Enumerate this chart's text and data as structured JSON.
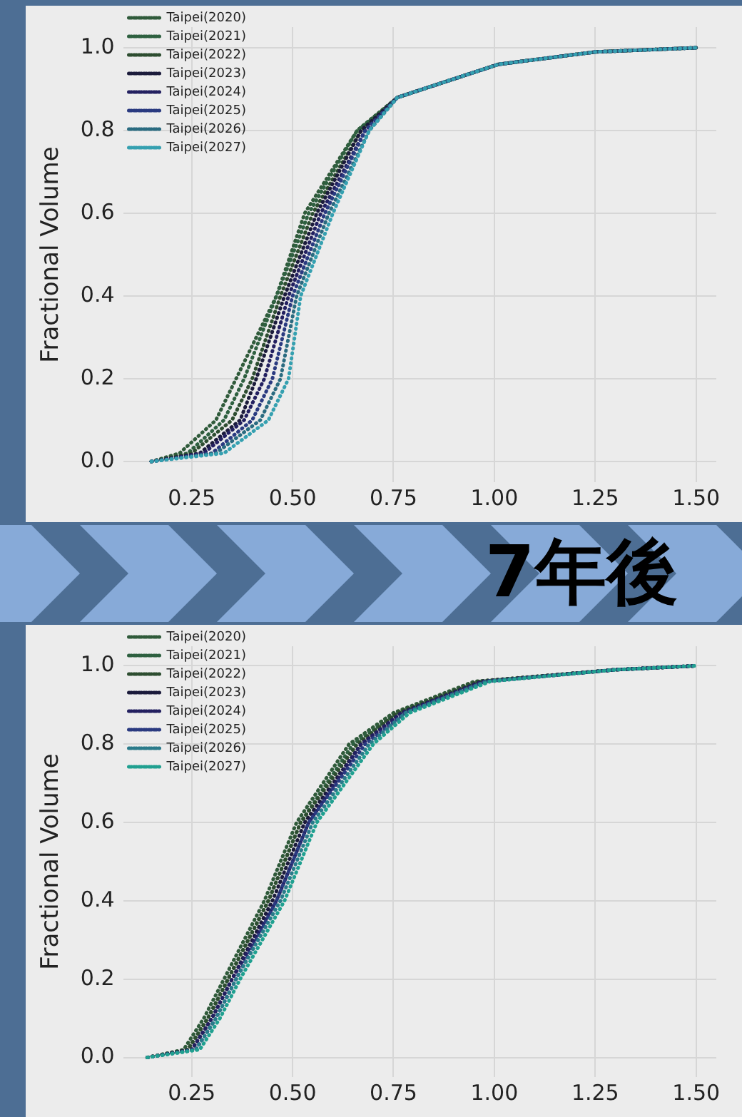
{
  "chart_data": [
    {
      "type": "line",
      "ylabel": "Fractional Volume",
      "line_style": "dotted",
      "grid": true,
      "legend": "top left",
      "xlim": [
        0.08,
        1.55
      ],
      "xticks": [
        {
          "value": 0.25,
          "label": "0.25"
        },
        {
          "value": 0.5,
          "label": "0.50"
        },
        {
          "value": 0.75,
          "label": "0.75"
        },
        {
          "value": 1,
          "label": "1.00"
        },
        {
          "value": 1.25,
          "label": "1.25"
        },
        {
          "value": 1.5,
          "label": "1.50"
        }
      ],
      "ylim": [
        -0.05,
        1.05
      ],
      "yticks": [
        {
          "value": 0,
          "label": "0.0"
        },
        {
          "value": 0.2,
          "label": "0.2"
        },
        {
          "value": 0.4,
          "label": "0.4"
        },
        {
          "value": 0.6,
          "label": "0.6"
        },
        {
          "value": 0.8,
          "label": "0.8"
        },
        {
          "value": 1,
          "label": "1.0"
        }
      ],
      "series": [
        {
          "name": "Taipei(2020)",
          "color": "#2f5a3a",
          "x": [
            0.15,
            0.22,
            0.31,
            0.36,
            0.46,
            0.53,
            0.66,
            0.76,
            1.01,
            1.25,
            1.5
          ],
          "values": [
            0,
            0.02,
            0.1,
            0.2,
            0.4,
            0.6,
            0.8,
            0.88,
            0.96,
            0.99,
            1.0
          ]
        },
        {
          "name": "Taipei(2021)",
          "color": "#2e6040",
          "x": [
            0.15,
            0.24,
            0.33,
            0.38,
            0.46,
            0.54,
            0.66,
            0.76,
            1.01,
            1.25,
            1.5
          ],
          "values": [
            0,
            0.02,
            0.1,
            0.2,
            0.4,
            0.6,
            0.8,
            0.88,
            0.96,
            0.99,
            1.0
          ]
        },
        {
          "name": "Taipei(2022)",
          "color": "#2d4d30",
          "x": [
            0.15,
            0.25,
            0.35,
            0.4,
            0.47,
            0.55,
            0.67,
            0.76,
            1.01,
            1.25,
            1.5
          ],
          "values": [
            0,
            0.02,
            0.1,
            0.2,
            0.4,
            0.6,
            0.8,
            0.88,
            0.96,
            0.99,
            1.0
          ]
        },
        {
          "name": "Taipei(2023)",
          "color": "#1b1b3b",
          "x": [
            0.15,
            0.27,
            0.37,
            0.41,
            0.48,
            0.56,
            0.67,
            0.76,
            1.01,
            1.25,
            1.5
          ],
          "values": [
            0,
            0.02,
            0.1,
            0.2,
            0.4,
            0.6,
            0.8,
            0.88,
            0.96,
            0.99,
            1.0
          ]
        },
        {
          "name": "Taipei(2024)",
          "color": "#232060",
          "x": [
            0.15,
            0.28,
            0.38,
            0.43,
            0.49,
            0.57,
            0.68,
            0.76,
            1.01,
            1.25,
            1.5
          ],
          "values": [
            0,
            0.02,
            0.1,
            0.2,
            0.4,
            0.6,
            0.8,
            0.88,
            0.96,
            0.99,
            1.0
          ]
        },
        {
          "name": "Taipei(2025)",
          "color": "#2a3a80",
          "x": [
            0.15,
            0.3,
            0.4,
            0.45,
            0.5,
            0.58,
            0.68,
            0.76,
            1.01,
            1.25,
            1.5
          ],
          "values": [
            0,
            0.02,
            0.1,
            0.2,
            0.4,
            0.6,
            0.8,
            0.88,
            0.96,
            0.99,
            1.0
          ]
        },
        {
          "name": "Taipei(2026)",
          "color": "#2a6b80",
          "x": [
            0.15,
            0.31,
            0.42,
            0.47,
            0.51,
            0.59,
            0.69,
            0.76,
            1.01,
            1.25,
            1.5
          ],
          "values": [
            0,
            0.02,
            0.1,
            0.2,
            0.4,
            0.6,
            0.8,
            0.88,
            0.96,
            0.99,
            1.0
          ]
        },
        {
          "name": "Taipei(2027)",
          "color": "#35a0b0",
          "x": [
            0.15,
            0.33,
            0.44,
            0.49,
            0.52,
            0.6,
            0.69,
            0.76,
            1.01,
            1.25,
            1.5
          ],
          "values": [
            0,
            0.02,
            0.1,
            0.2,
            0.4,
            0.6,
            0.8,
            0.88,
            0.96,
            0.99,
            1.0
          ]
        }
      ]
    },
    {
      "type": "line",
      "ylabel": "Fractional Volume",
      "line_style": "dotted",
      "grid": true,
      "legend": "top left",
      "annotations": [
        "7年後"
      ],
      "xlim": [
        0.08,
        1.55
      ],
      "xticks": [
        {
          "value": 0.25,
          "label": "0.25"
        },
        {
          "value": 0.5,
          "label": "0.50"
        },
        {
          "value": 0.75,
          "label": "0.75"
        },
        {
          "value": 1,
          "label": "1.00"
        },
        {
          "value": 1.25,
          "label": "1.25"
        },
        {
          "value": 1.5,
          "label": "1.50"
        }
      ],
      "ylim": [
        -0.05,
        1.05
      ],
      "yticks": [
        {
          "value": 0,
          "label": "0.0"
        },
        {
          "value": 0.2,
          "label": "0.2"
        },
        {
          "value": 0.4,
          "label": "0.4"
        },
        {
          "value": 0.6,
          "label": "0.6"
        },
        {
          "value": 0.8,
          "label": "0.8"
        },
        {
          "value": 1,
          "label": "1.0"
        }
      ],
      "series": [
        {
          "name": "Taipei(2020)",
          "color": "#2f5a3a",
          "x": [
            0.14,
            0.23,
            0.28,
            0.33,
            0.43,
            0.51,
            0.64,
            0.75,
            0.95,
            1.3,
            1.5
          ],
          "values": [
            0,
            0.02,
            0.1,
            0.2,
            0.4,
            0.6,
            0.8,
            0.88,
            0.96,
            0.99,
            1.0
          ]
        },
        {
          "name": "Taipei(2021)",
          "color": "#2e6040",
          "x": [
            0.14,
            0.24,
            0.29,
            0.34,
            0.44,
            0.52,
            0.65,
            0.76,
            0.96,
            1.3,
            1.5
          ],
          "values": [
            0,
            0.02,
            0.1,
            0.2,
            0.4,
            0.6,
            0.8,
            0.88,
            0.96,
            0.99,
            1.0
          ]
        },
        {
          "name": "Taipei(2022)",
          "color": "#2d4d30",
          "x": [
            0.14,
            0.24,
            0.29,
            0.34,
            0.44,
            0.52,
            0.66,
            0.76,
            0.96,
            1.3,
            1.5
          ],
          "values": [
            0,
            0.02,
            0.1,
            0.2,
            0.4,
            0.6,
            0.8,
            0.88,
            0.96,
            0.99,
            1.0
          ]
        },
        {
          "name": "Taipei(2023)",
          "color": "#1b1b3b",
          "x": [
            0.14,
            0.25,
            0.3,
            0.35,
            0.45,
            0.53,
            0.67,
            0.77,
            0.97,
            1.3,
            1.5
          ],
          "values": [
            0,
            0.02,
            0.1,
            0.2,
            0.4,
            0.6,
            0.8,
            0.88,
            0.96,
            0.99,
            1.0
          ]
        },
        {
          "name": "Taipei(2024)",
          "color": "#232060",
          "x": [
            0.14,
            0.25,
            0.3,
            0.35,
            0.46,
            0.54,
            0.67,
            0.77,
            0.97,
            1.3,
            1.5
          ],
          "values": [
            0,
            0.02,
            0.1,
            0.2,
            0.4,
            0.6,
            0.8,
            0.88,
            0.96,
            0.99,
            1.0
          ]
        },
        {
          "name": "Taipei(2025)",
          "color": "#2a3a80",
          "x": [
            0.14,
            0.26,
            0.31,
            0.36,
            0.46,
            0.54,
            0.68,
            0.78,
            0.98,
            1.3,
            1.5
          ],
          "values": [
            0,
            0.02,
            0.1,
            0.2,
            0.4,
            0.6,
            0.8,
            0.88,
            0.96,
            0.99,
            1.0
          ]
        },
        {
          "name": "Taipei(2026)",
          "color": "#2a7a8a",
          "x": [
            0.14,
            0.26,
            0.31,
            0.36,
            0.47,
            0.55,
            0.69,
            0.78,
            0.98,
            1.3,
            1.5
          ],
          "values": [
            0,
            0.02,
            0.1,
            0.2,
            0.4,
            0.6,
            0.8,
            0.88,
            0.96,
            0.99,
            1.0
          ]
        },
        {
          "name": "Taipei(2027)",
          "color": "#20a090",
          "x": [
            0.14,
            0.27,
            0.32,
            0.37,
            0.48,
            0.56,
            0.7,
            0.79,
            0.99,
            1.3,
            1.5
          ],
          "values": [
            0,
            0.02,
            0.1,
            0.2,
            0.4,
            0.6,
            0.8,
            0.88,
            0.96,
            0.99,
            1.0
          ]
        }
      ]
    }
  ]
}
